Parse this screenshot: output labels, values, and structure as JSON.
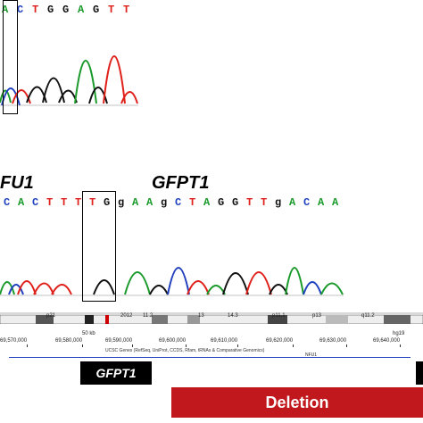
{
  "top_panel": {
    "sequence": [
      {
        "base": "A",
        "color": "#1a9a2a"
      },
      {
        "base": "C",
        "color": "#1f3fbf"
      },
      {
        "base": "T",
        "color": "#e0201a"
      },
      {
        "base": "G",
        "color": "#111111"
      },
      {
        "base": "G",
        "color": "#111111"
      },
      {
        "base": "A",
        "color": "#1a9a2a"
      },
      {
        "base": "G",
        "color": "#111111"
      },
      {
        "base": "T",
        "color": "#e0201a"
      },
      {
        "base": "T",
        "color": "#e0201a"
      }
    ]
  },
  "middle_panel": {
    "label_left": "FU1",
    "label_right": "GFPT1",
    "sequence": [
      {
        "base": "C",
        "color": "#1f3fbf"
      },
      {
        "base": "A",
        "color": "#1a9a2a"
      },
      {
        "base": "C",
        "color": "#1f3fbf"
      },
      {
        "base": "T",
        "color": "#e0201a"
      },
      {
        "base": "T",
        "color": "#e0201a"
      },
      {
        "base": "T",
        "color": "#e0201a"
      },
      {
        "base": "T",
        "color": "#e0201a"
      },
      {
        "base": "G",
        "color": "#111111"
      },
      {
        "base": "g",
        "color": "#111111"
      },
      {
        "base": "A",
        "color": "#1a9a2a"
      },
      {
        "base": "A",
        "color": "#1a9a2a"
      },
      {
        "base": "g",
        "color": "#111111"
      },
      {
        "base": "C",
        "color": "#1f3fbf"
      },
      {
        "base": "T",
        "color": "#e0201a"
      },
      {
        "base": "A",
        "color": "#1a9a2a"
      },
      {
        "base": "G",
        "color": "#111111"
      },
      {
        "base": "G",
        "color": "#111111"
      },
      {
        "base": "T",
        "color": "#e0201a"
      },
      {
        "base": "T",
        "color": "#e0201a"
      },
      {
        "base": "g",
        "color": "#111111"
      },
      {
        "base": "A",
        "color": "#1a9a2a"
      },
      {
        "base": "C",
        "color": "#1f3fbf"
      },
      {
        "base": "A",
        "color": "#1a9a2a"
      },
      {
        "base": "A",
        "color": "#1a9a2a"
      }
    ]
  },
  "browser": {
    "ideogram_labels": [
      "p21",
      "2012",
      "11.2",
      "13",
      "14.3",
      "p11.1",
      "p13",
      "q11.2"
    ],
    "scale_label": "50 kb",
    "assembly": "hg19",
    "coordinates": [
      "69,570,000",
      "69,580,000",
      "69,590,000",
      "69,600,000",
      "69,610,000",
      "69,620,000",
      "69,630,000",
      "69,640,000"
    ],
    "track_label": "UCSC Genes (RefSeq, UniProt, CCDS, Rfam, tRNAs & Comparative Genomics)",
    "gene_track": "NFU1",
    "gene_tag": "GFPT1",
    "deletion_label": "Deletion",
    "colors": {
      "deletion": "#c0181d",
      "tag": "#000000"
    }
  }
}
